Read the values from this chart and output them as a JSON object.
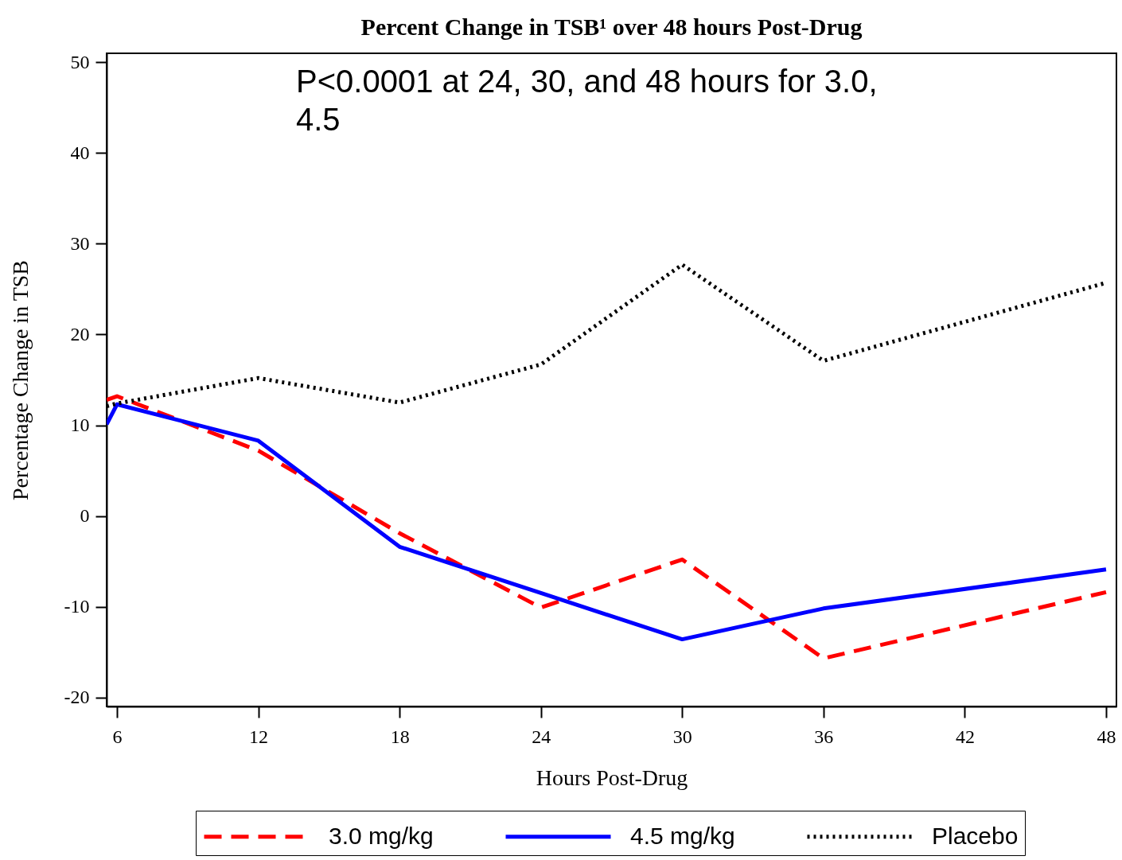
{
  "chart_data": {
    "type": "line",
    "title": "Percent Change in TSB¹ over 48 hours Post-Drug",
    "xlabel": "Hours Post-Drug",
    "ylabel": "Percentage Change in TSB",
    "x": [
      5.56,
      6,
      12,
      18,
      24,
      30,
      36,
      48
    ],
    "xlim": [
      5.56,
      48.44
    ],
    "xticks": [
      6,
      12,
      18,
      24,
      30,
      36,
      42,
      48
    ],
    "ylim": [
      -21,
      51
    ],
    "yticks": [
      -20,
      -10,
      0,
      10,
      20,
      30,
      40,
      50
    ],
    "series": [
      {
        "name": "3.0 mg/kg",
        "color": "#ff0000",
        "line_style": "dashed",
        "values": [
          12.8,
          13.2,
          7.2,
          -1.9,
          -10.1,
          -4.8,
          -15.7,
          -8.4
        ]
      },
      {
        "name": "4.5 mg/kg",
        "color": "#0000ff",
        "line_style": "solid",
        "values": [
          10.1,
          12.3,
          8.3,
          -3.4,
          -8.5,
          -13.6,
          -10.2,
          -5.9
        ]
      },
      {
        "name": "Placebo",
        "color": "#000000",
        "line_style": "dotted",
        "values": [
          12.1,
          12.4,
          15.2,
          12.5,
          16.7,
          27.7,
          17.1,
          25.7
        ]
      }
    ],
    "annotations": [
      "P<0.0001 at 24, 30, and 48 hours for 3.0, 4.5"
    ],
    "legend": "bottom"
  }
}
